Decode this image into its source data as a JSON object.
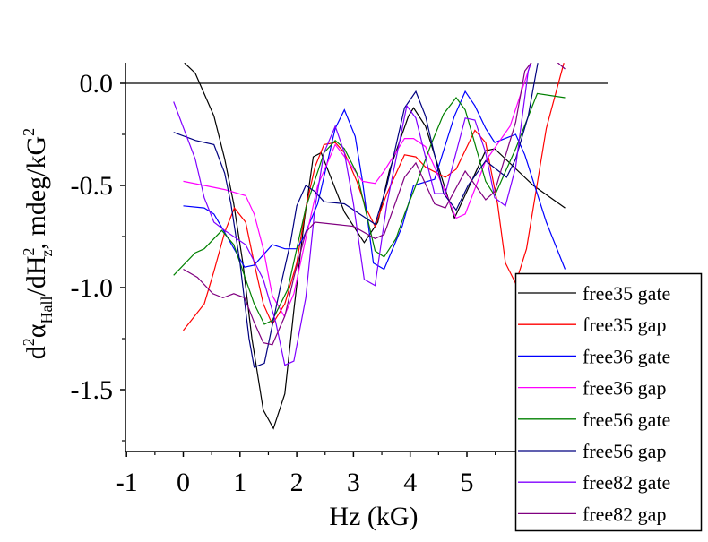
{
  "chart_data": {
    "type": "line",
    "xlabel": "Hz (kG)",
    "ylabel": {
      "main": "d",
      "sup1": "2",
      "alpha": "α",
      "sub1": "Hall",
      "mid": "/dH",
      "sub2": "z",
      "sup2": "2",
      "unit": ", mdeg/kG",
      "sup3": "2"
    },
    "xlim": [
      -1,
      7.5
    ],
    "ylim": [
      -1.8,
      0.1
    ],
    "xticks": [
      "-1",
      "0",
      "1",
      "2",
      "3",
      "4",
      "5"
    ],
    "xtick_values": [
      -1,
      0,
      1,
      2,
      3,
      4,
      5
    ],
    "yticks": [
      "0.0",
      "-0.5",
      "-1.0",
      "-1.5"
    ],
    "ytick_values": [
      0,
      -0.5,
      -1.0,
      -1.5
    ],
    "reference_line_y": 0,
    "legend_position": "bottom-right",
    "series": [
      {
        "name": "free35 gate",
        "color": "#000000",
        "points": [
          [
            0.02,
            0.1
          ],
          [
            0.21,
            0.05
          ],
          [
            0.54,
            -0.16
          ],
          [
            0.73,
            -0.37
          ],
          [
            0.89,
            -0.59
          ],
          [
            1.05,
            -0.88
          ],
          [
            1.21,
            -1.25
          ],
          [
            1.41,
            -1.6
          ],
          [
            1.59,
            -1.69
          ],
          [
            1.79,
            -1.52
          ],
          [
            1.95,
            -1.11
          ],
          [
            2.13,
            -0.68
          ],
          [
            2.29,
            -0.36
          ],
          [
            2.43,
            -0.34
          ],
          [
            2.84,
            -0.63
          ],
          [
            3.19,
            -0.78
          ],
          [
            3.43,
            -0.68
          ],
          [
            3.63,
            -0.43
          ],
          [
            3.97,
            -0.16
          ],
          [
            4.06,
            -0.12
          ],
          [
            4.27,
            -0.21
          ],
          [
            4.78,
            -0.66
          ],
          [
            5.33,
            -0.33
          ],
          [
            5.49,
            -0.32
          ],
          [
            6.17,
            -0.5
          ],
          [
            6.73,
            -0.61
          ]
        ]
      },
      {
        "name": "free35 gap",
        "color": "#FF0000",
        "points": [
          [
            0,
            -1.21
          ],
          [
            0.37,
            -1.08
          ],
          [
            0.54,
            -0.92
          ],
          [
            0.73,
            -0.73
          ],
          [
            0.9,
            -0.61
          ],
          [
            1.1,
            -0.68
          ],
          [
            1.25,
            -0.88
          ],
          [
            1.41,
            -1.08
          ],
          [
            1.57,
            -1.18
          ],
          [
            1.79,
            -1.08
          ],
          [
            2.0,
            -0.88
          ],
          [
            2.16,
            -0.61
          ],
          [
            2.32,
            -0.41
          ],
          [
            2.48,
            -0.3
          ],
          [
            2.68,
            -0.29
          ],
          [
            2.84,
            -0.34
          ],
          [
            3.06,
            -0.48
          ],
          [
            3.22,
            -0.61
          ],
          [
            3.38,
            -0.7
          ],
          [
            3.59,
            -0.54
          ],
          [
            3.9,
            -0.35
          ],
          [
            4.1,
            -0.36
          ],
          [
            4.27,
            -0.41
          ],
          [
            4.62,
            -0.46
          ],
          [
            4.81,
            -0.42
          ],
          [
            5.14,
            -0.23
          ],
          [
            5.33,
            -0.29
          ],
          [
            5.54,
            -0.59
          ],
          [
            5.68,
            -0.88
          ],
          [
            5.86,
            -0.98
          ],
          [
            6.05,
            -0.81
          ],
          [
            6.4,
            -0.22
          ],
          [
            6.71,
            0.1
          ]
        ]
      },
      {
        "name": "free36 gate",
        "color": "#0000FF",
        "points": [
          [
            0,
            -0.6
          ],
          [
            0.37,
            -0.61
          ],
          [
            0.54,
            -0.64
          ],
          [
            0.73,
            -0.73
          ],
          [
            1.08,
            -0.9
          ],
          [
            1.25,
            -0.89
          ],
          [
            1.57,
            -0.79
          ],
          [
            1.79,
            -0.81
          ],
          [
            2.0,
            -0.81
          ],
          [
            2.11,
            -0.76
          ],
          [
            2.37,
            -0.59
          ],
          [
            2.68,
            -0.22
          ],
          [
            2.84,
            -0.13
          ],
          [
            3.03,
            -0.26
          ],
          [
            3.16,
            -0.48
          ],
          [
            3.35,
            -0.88
          ],
          [
            3.54,
            -0.91
          ],
          [
            3.86,
            -0.7
          ],
          [
            4.06,
            -0.5
          ],
          [
            4.43,
            -0.47
          ],
          [
            4.78,
            -0.16
          ],
          [
            4.97,
            -0.04
          ],
          [
            5.14,
            -0.11
          ],
          [
            5.33,
            -0.22
          ],
          [
            5.49,
            -0.29
          ],
          [
            5.86,
            -0.25
          ],
          [
            6.02,
            -0.35
          ],
          [
            6.4,
            -0.68
          ],
          [
            6.73,
            -0.91
          ]
        ]
      },
      {
        "name": "free36 gap",
        "color": "#FF00FF",
        "points": [
          [
            0,
            -0.48
          ],
          [
            0.37,
            -0.5
          ],
          [
            0.73,
            -0.52
          ],
          [
            1.1,
            -0.55
          ],
          [
            1.25,
            -0.64
          ],
          [
            1.41,
            -0.81
          ],
          [
            1.57,
            -1.04
          ],
          [
            1.78,
            -1.14
          ],
          [
            1.95,
            -1.03
          ],
          [
            2.16,
            -0.76
          ],
          [
            2.37,
            -0.5
          ],
          [
            2.68,
            -0.3
          ],
          [
            2.9,
            -0.38
          ],
          [
            3.16,
            -0.48
          ],
          [
            3.38,
            -0.49
          ],
          [
            3.54,
            -0.43
          ],
          [
            3.9,
            -0.27
          ],
          [
            4.06,
            -0.27
          ],
          [
            4.27,
            -0.31
          ],
          [
            4.43,
            -0.41
          ],
          [
            4.81,
            -0.66
          ],
          [
            4.97,
            -0.64
          ],
          [
            5.33,
            -0.38
          ],
          [
            5.76,
            -0.21
          ],
          [
            6.08,
            0.06
          ],
          [
            6.13,
            0.1
          ]
        ]
      },
      {
        "name": "free56 gate",
        "color": "#008000",
        "points": [
          [
            -0.17,
            -0.94
          ],
          [
            0.21,
            -0.83
          ],
          [
            0.37,
            -0.81
          ],
          [
            0.68,
            -0.72
          ],
          [
            0.89,
            -0.79
          ],
          [
            1.25,
            -1.08
          ],
          [
            1.43,
            -1.18
          ],
          [
            1.57,
            -1.16
          ],
          [
            1.84,
            -1.01
          ],
          [
            2.16,
            -0.61
          ],
          [
            2.48,
            -0.34
          ],
          [
            2.68,
            -0.28
          ],
          [
            2.84,
            -0.32
          ],
          [
            3.06,
            -0.44
          ],
          [
            3.38,
            -0.82
          ],
          [
            3.54,
            -0.85
          ],
          [
            3.75,
            -0.76
          ],
          [
            3.9,
            -0.64
          ],
          [
            4.1,
            -0.5
          ],
          [
            4.38,
            -0.29
          ],
          [
            4.59,
            -0.15
          ],
          [
            4.81,
            -0.07
          ],
          [
            4.97,
            -0.13
          ],
          [
            5.33,
            -0.48
          ],
          [
            5.49,
            -0.55
          ],
          [
            5.86,
            -0.32
          ],
          [
            6.24,
            -0.05
          ],
          [
            6.73,
            -0.07
          ]
        ]
      },
      {
        "name": "free56 gap",
        "color": "#000080",
        "points": [
          [
            -0.17,
            -0.24
          ],
          [
            0.22,
            -0.28
          ],
          [
            0.54,
            -0.3
          ],
          [
            0.73,
            -0.44
          ],
          [
            0.84,
            -0.59
          ],
          [
            1.0,
            -0.88
          ],
          [
            1.16,
            -1.25
          ],
          [
            1.25,
            -1.39
          ],
          [
            1.43,
            -1.37
          ],
          [
            1.71,
            -1.0
          ],
          [
            1.89,
            -0.78
          ],
          [
            2.0,
            -0.6
          ],
          [
            2.16,
            -0.5
          ],
          [
            2.32,
            -0.53
          ],
          [
            2.48,
            -0.58
          ],
          [
            2.84,
            -0.59
          ],
          [
            3.22,
            -0.66
          ],
          [
            3.38,
            -0.69
          ],
          [
            3.59,
            -0.5
          ],
          [
            3.9,
            -0.12
          ],
          [
            4.1,
            -0.04
          ],
          [
            4.27,
            -0.16
          ],
          [
            4.59,
            -0.54
          ],
          [
            4.81,
            -0.62
          ],
          [
            5.02,
            -0.5
          ],
          [
            5.33,
            -0.38
          ],
          [
            5.7,
            -0.46
          ],
          [
            5.86,
            -0.37
          ],
          [
            6.08,
            -0.16
          ],
          [
            6.25,
            0.1
          ]
        ]
      },
      {
        "name": "free82 gate",
        "color": "#8000FF",
        "points": [
          [
            -0.17,
            -0.09
          ],
          [
            0.21,
            -0.37
          ],
          [
            0.37,
            -0.56
          ],
          [
            0.54,
            -0.68
          ],
          [
            0.73,
            -0.72
          ],
          [
            1.1,
            -0.79
          ],
          [
            1.41,
            -0.96
          ],
          [
            1.63,
            -1.17
          ],
          [
            1.79,
            -1.38
          ],
          [
            1.95,
            -1.36
          ],
          [
            2.16,
            -1.05
          ],
          [
            2.32,
            -0.61
          ],
          [
            2.48,
            -0.34
          ],
          [
            2.68,
            -0.21
          ],
          [
            2.84,
            -0.34
          ],
          [
            3.0,
            -0.59
          ],
          [
            3.19,
            -0.96
          ],
          [
            3.38,
            -0.99
          ],
          [
            3.59,
            -0.59
          ],
          [
            3.94,
            -0.11
          ],
          [
            4.1,
            -0.17
          ],
          [
            4.43,
            -0.54
          ],
          [
            4.62,
            -0.54
          ],
          [
            4.97,
            -0.17
          ],
          [
            5.14,
            -0.18
          ],
          [
            5.33,
            -0.34
          ],
          [
            5.49,
            -0.56
          ],
          [
            5.68,
            -0.6
          ],
          [
            5.86,
            -0.41
          ],
          [
            6.08,
            0.06
          ],
          [
            6.13,
            0.1
          ]
        ]
      },
      {
        "name": "free82 gap",
        "color": "#800080",
        "points": [
          [
            0,
            -0.91
          ],
          [
            0.25,
            -0.95
          ],
          [
            0.52,
            -1.03
          ],
          [
            0.7,
            -1.05
          ],
          [
            0.89,
            -1.03
          ],
          [
            1.08,
            -1.05
          ],
          [
            1.25,
            -1.17
          ],
          [
            1.41,
            -1.27
          ],
          [
            1.57,
            -1.28
          ],
          [
            1.79,
            -1.14
          ],
          [
            1.95,
            -0.95
          ],
          [
            2.16,
            -0.73
          ],
          [
            2.32,
            -0.68
          ],
          [
            3.0,
            -0.7
          ],
          [
            3.38,
            -0.76
          ],
          [
            3.54,
            -0.74
          ],
          [
            3.9,
            -0.46
          ],
          [
            4.1,
            -0.39
          ],
          [
            4.43,
            -0.59
          ],
          [
            4.62,
            -0.61
          ],
          [
            4.97,
            -0.43
          ],
          [
            5.33,
            -0.57
          ],
          [
            5.49,
            -0.53
          ],
          [
            5.86,
            -0.19
          ],
          [
            6.02,
            0.06
          ],
          [
            6.13,
            0.1
          ],
          [
            6.4,
            0.15
          ],
          [
            6.73,
            0.07
          ]
        ]
      }
    ]
  }
}
